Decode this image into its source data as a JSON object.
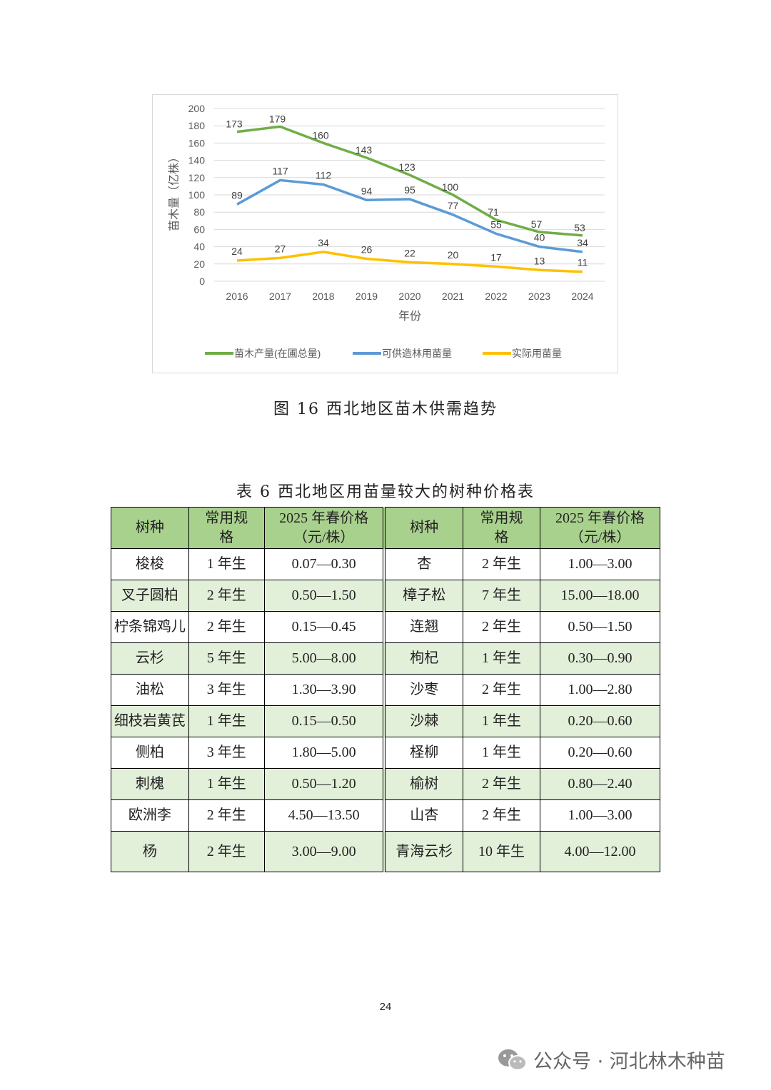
{
  "chart_data": {
    "type": "line",
    "title": "",
    "xlabel": "年份",
    "ylabel": "苗木量（亿株）",
    "x": [
      "2016",
      "2017",
      "2018",
      "2019",
      "2020",
      "2021",
      "2022",
      "2023",
      "2024"
    ],
    "ylim": [
      0,
      200
    ],
    "yticks": [
      0,
      20,
      40,
      60,
      80,
      100,
      120,
      140,
      160,
      180,
      200
    ],
    "grid": true,
    "legend_position": "bottom",
    "series": [
      {
        "name": "苗木产量(在圃总量)",
        "color": "#70ad47",
        "values": [
          173,
          179,
          160,
          143,
          123,
          100,
          71,
          57,
          53
        ]
      },
      {
        "name": "可供造林用苗量",
        "color": "#5b9bd5",
        "values": [
          89,
          117,
          112,
          94,
          95,
          77,
          55,
          40,
          34
        ]
      },
      {
        "name": "实际用苗量",
        "color": "#ffc000",
        "values": [
          24,
          27,
          34,
          26,
          22,
          20,
          17,
          13,
          11
        ]
      }
    ]
  },
  "figure_caption": "图 16  西北地区苗木供需趋势",
  "table": {
    "caption": "表 6  西北地区用苗量较大的树种价格表",
    "headers": [
      "树种",
      "常用规格",
      "2025 年春价格（元/株）",
      "树种",
      "常用规格",
      "2025 年春价格（元/株）"
    ],
    "rows": [
      [
        "梭梭",
        "1 年生",
        "0.07—0.30",
        "杏",
        "2 年生",
        "1.00—3.00"
      ],
      [
        "叉子圆柏",
        "2 年生",
        "0.50—1.50",
        "樟子松",
        "7 年生",
        "15.00—18.00"
      ],
      [
        "柠条锦鸡儿",
        "2 年生",
        "0.15—0.45",
        "连翘",
        "2 年生",
        "0.50—1.50"
      ],
      [
        "云杉",
        "5 年生",
        "5.00—8.00",
        "枸杞",
        "1 年生",
        "0.30—0.90"
      ],
      [
        "油松",
        "3 年生",
        "1.30—3.90",
        "沙枣",
        "2 年生",
        "1.00—2.80"
      ],
      [
        "细枝岩黄芪",
        "1 年生",
        "0.15—0.50",
        "沙棘",
        "1 年生",
        "0.20—0.60"
      ],
      [
        "侧柏",
        "3 年生",
        "1.80—5.00",
        "柽柳",
        "1 年生",
        "0.20—0.60"
      ],
      [
        "刺槐",
        "1 年生",
        "0.50—1.20",
        "榆树",
        "2 年生",
        "0.80—2.40"
      ],
      [
        "欧洲李",
        "2 年生",
        "4.50—13.50",
        "山杏",
        "2 年生",
        "1.00—3.00"
      ],
      [
        "杨",
        "2 年生",
        "3.00—9.00",
        "青海云杉",
        "10 年生",
        "4.00—12.00"
      ]
    ],
    "header_color": "#a9d18e",
    "alt_row_color": "#e2efd9"
  },
  "page_number": "24",
  "watermark": {
    "text": "公众号 · 河北林木种苗",
    "icon": "wechat-icon"
  }
}
